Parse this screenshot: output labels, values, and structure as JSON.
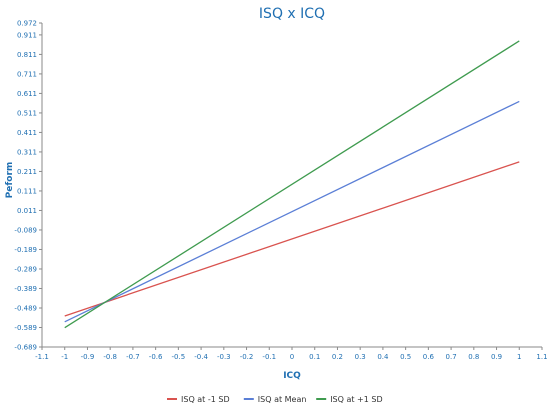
{
  "chart_data": {
    "type": "line",
    "title": "ISQ x ICQ",
    "xlabel": "ICQ",
    "ylabel": "Peform",
    "xlim": [
      -1.1,
      1.1
    ],
    "ylim": [
      -0.689,
      0.972
    ],
    "x_ticks": [
      "-1.1",
      "-1",
      "-0.9",
      "-0.8",
      "-0.7",
      "-0.6",
      "-0.5",
      "-0.4",
      "-0.3",
      "-0.2",
      "-0.1",
      "0",
      "0.1",
      "0.2",
      "0.3",
      "0.4",
      "0.5",
      "0.6",
      "0.7",
      "0.8",
      "0.9",
      "1",
      "1.1"
    ],
    "y_ticks": [
      "0.972",
      "0.911",
      "0.811",
      "0.711",
      "0.611",
      "0.511",
      "0.411",
      "0.311",
      "0.211",
      "0.111",
      "0.011",
      "-0.089",
      "-0.189",
      "-0.289",
      "-0.389",
      "-0.489",
      "-0.589",
      "-0.689"
    ],
    "grid": false,
    "legend_position": "bottom",
    "series": [
      {
        "name": "ISQ at -1 SD",
        "color": "#d9534f",
        "x": [
          -1,
          1
        ],
        "y": [
          -0.53,
          0.26
        ]
      },
      {
        "name": "ISQ at Mean",
        "color": "#5b7fd6",
        "x": [
          -1,
          1
        ],
        "y": [
          -0.56,
          0.57
        ]
      },
      {
        "name": "ISQ at +1 SD",
        "color": "#3f9b4f",
        "x": [
          -1,
          1
        ],
        "y": [
          -0.59,
          0.88
        ]
      }
    ]
  }
}
